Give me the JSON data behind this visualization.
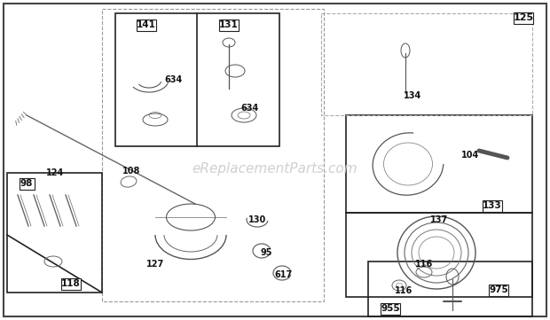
{
  "bg_color": "#ffffff",
  "watermark": "eReplacementParts.com",
  "watermark_color": "#c8c8c8",
  "watermark_alpha": 0.85,
  "fig_w": 6.2,
  "fig_h": 3.61,
  "dpi": 100
}
